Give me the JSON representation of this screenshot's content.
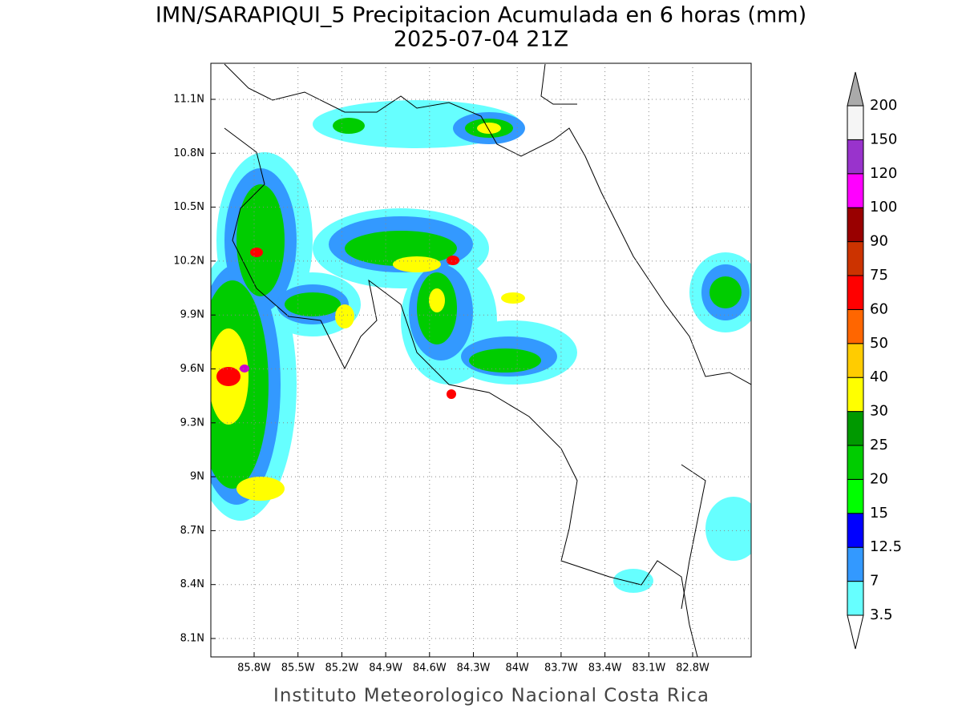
{
  "title": "IMN/SARAPIQUI_5 Precipitacion Acumulada en 6 horas (mm)",
  "subtitle": "2025-07-04 21Z",
  "footer": "Instituto Meteorologico Nacional Costa Rica",
  "map": {
    "xticks": [
      "85.8W",
      "85.5W",
      "85.2W",
      "84.9W",
      "84.6W",
      "84.3W",
      "84W",
      "83.7W",
      "83.4W",
      "83.1W",
      "82.8W"
    ],
    "yticks": [
      "11.1N",
      "10.8N",
      "10.5N",
      "10.2N",
      "9.9N",
      "9.6N",
      "9.3N",
      "9N",
      "8.7N",
      "8.4N",
      "8.1N"
    ],
    "grid": true
  },
  "colorbar": {
    "levels": [
      3.5,
      7,
      12.5,
      15,
      20,
      25,
      30,
      40,
      50,
      60,
      75,
      90,
      100,
      120,
      150,
      200
    ],
    "colors": [
      "#66ffff",
      "#3399ff",
      "#0000ff",
      "#00ff00",
      "#00cc00",
      "#009900",
      "#ffff00",
      "#ffcc00",
      "#ff6600",
      "#ff0000",
      "#cc3300",
      "#990000",
      "#ff00ff",
      "#9933cc",
      "#f5f5f5"
    ]
  }
}
